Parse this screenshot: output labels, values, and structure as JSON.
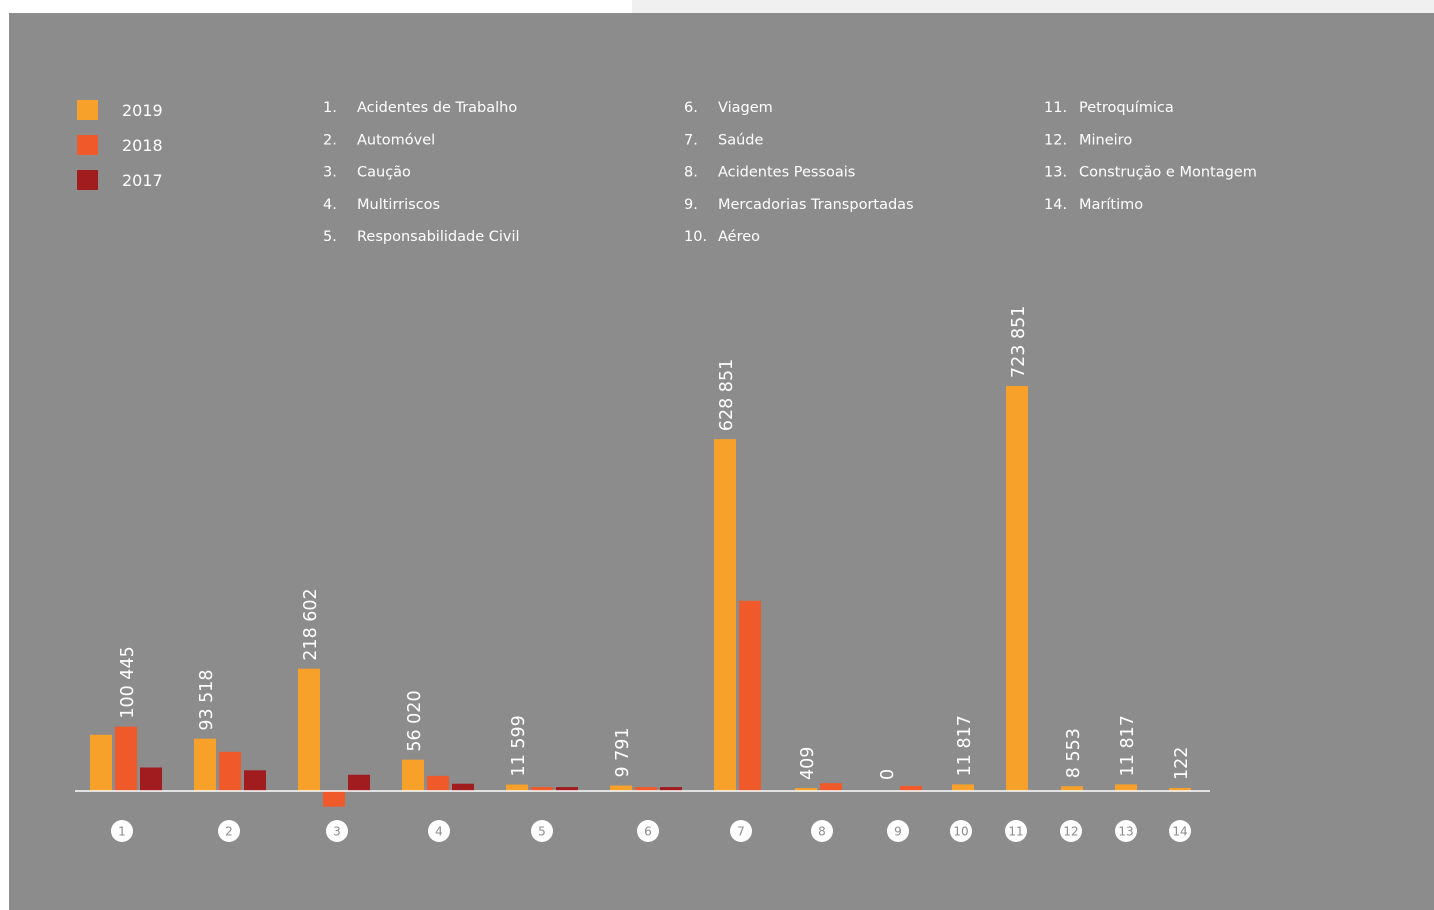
{
  "chart_data": {
    "type": "bar",
    "categories": [
      "1",
      "2",
      "3",
      "4",
      "5",
      "6",
      "7",
      "8",
      "9",
      "10",
      "11",
      "12",
      "13",
      "14"
    ],
    "category_names": [
      {
        "num": "1.",
        "label": "Acidentes de Trabalho"
      },
      {
        "num": "2.",
        "label": "Automóvel"
      },
      {
        "num": "3.",
        "label": "Caução"
      },
      {
        "num": "4.",
        "label": "Multirriscos"
      },
      {
        "num": "5.",
        "label": "Responsabilidade Civil"
      },
      {
        "num": "6.",
        "label": "Viagem"
      },
      {
        "num": "7.",
        "label": "Saúde"
      },
      {
        "num": "8.",
        "label": "Acidentes Pessoais"
      },
      {
        "num": "9.",
        "label": "Mercadorias Transportadas"
      },
      {
        "num": "10.",
        "label": "Aéreo"
      },
      {
        "num": "11.",
        "label": "Petroquímica"
      },
      {
        "num": "12.",
        "label": "Mineiro"
      },
      {
        "num": "13.",
        "label": "Construção e Montagem"
      },
      {
        "num": "14.",
        "label": "Marítimo"
      }
    ],
    "series": [
      {
        "name": "2019",
        "color": "#f7a12b",
        "values": [
          100445,
          93518,
          218602,
          56020,
          11599,
          9791,
          628851,
          409,
          0,
          11817,
          723851,
          8553,
          11817,
          122
        ]
      },
      {
        "name": "2018",
        "color": "#f05a2a",
        "values": [
          115000,
          70000,
          -28000,
          27000,
          7000,
          7000,
          340000,
          14000,
          9000,
          null,
          null,
          null,
          null,
          null
        ]
      },
      {
        "name": "2017",
        "color": "#a01c1e",
        "values": [
          42000,
          37000,
          29000,
          13000,
          7000,
          7000,
          null,
          null,
          null,
          null,
          null,
          null,
          null,
          null
        ]
      }
    ],
    "value_labels": [
      "100 445",
      "93 518",
      "218 602",
      "56 020",
      "11 599",
      "9 791",
      "628 851",
      "409",
      "0",
      "11 817",
      "723 851",
      "8 553",
      "11 817",
      "122"
    ],
    "ylim": [
      -30000,
      800000
    ],
    "legend_position": "top-left",
    "grid": false
  },
  "colors": {
    "background": "#8c8c8c",
    "text": "#ffffff",
    "axis": "#ffffff"
  }
}
